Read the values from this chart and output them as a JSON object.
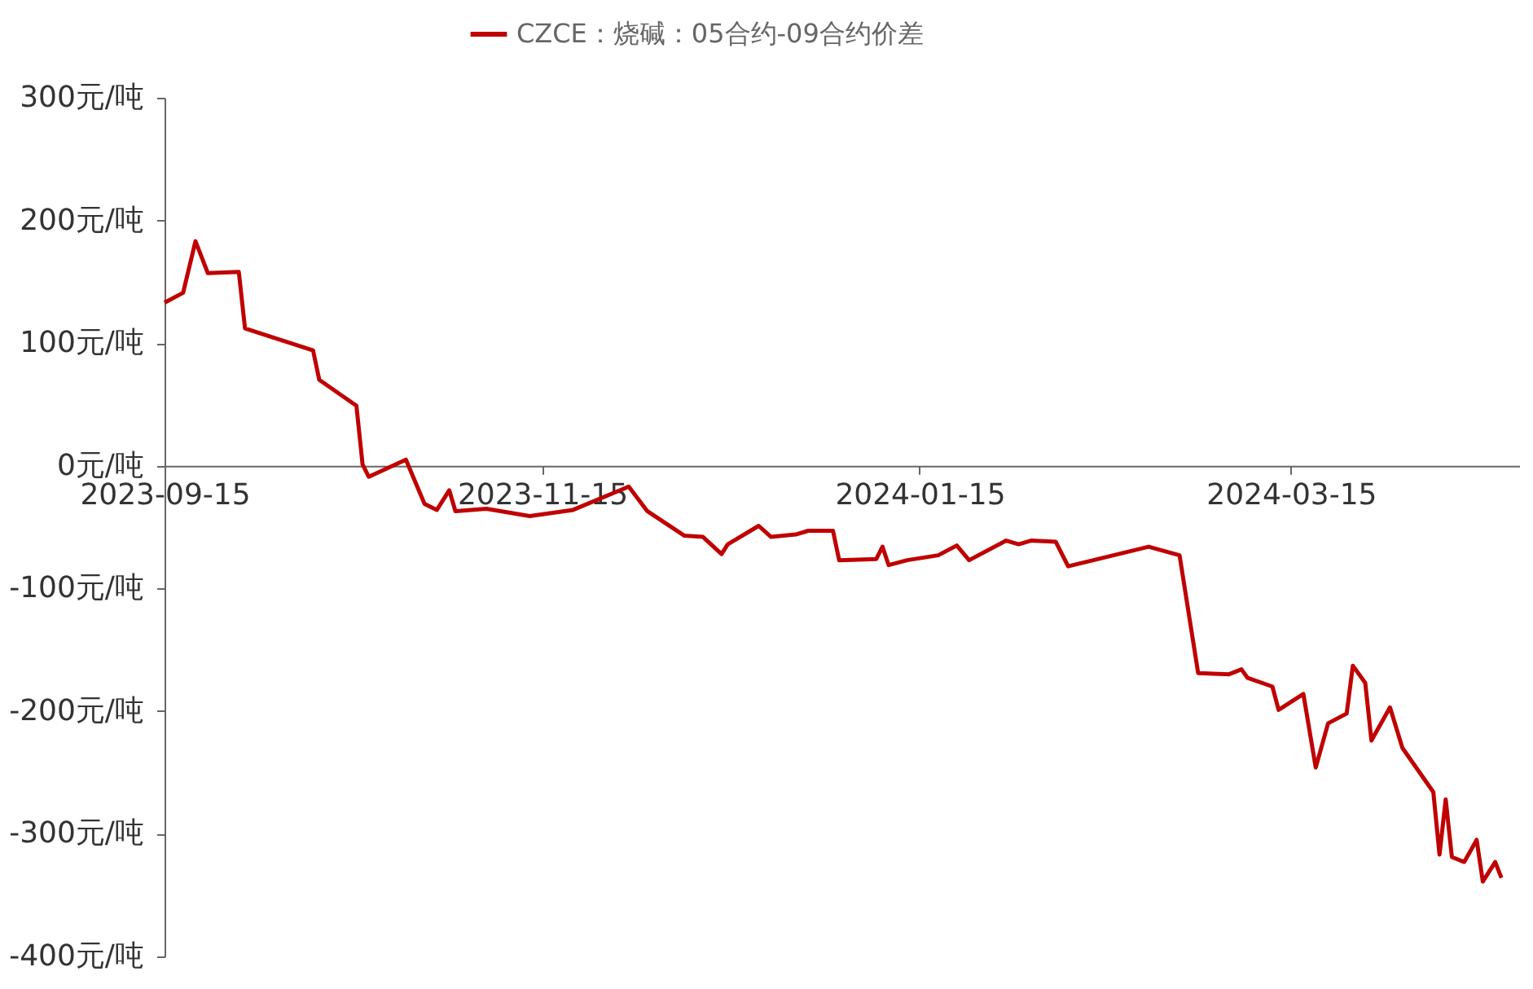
{
  "chart_data": {
    "type": "line",
    "legend": "top",
    "xlim": [
      "2023-09-15",
      "2024-04-21"
    ],
    "xticks": [
      {
        "value": "2023-09-15",
        "label": "2023-09-15"
      },
      {
        "value": "2023-11-15",
        "label": "2023-11-15"
      },
      {
        "value": "2024-01-15",
        "label": "2024-01-15"
      },
      {
        "value": "2024-03-15",
        "label": "2024-03-15"
      }
    ],
    "ylim": [
      -400,
      300
    ],
    "yticks": [
      {
        "value": 300,
        "label": "300元/吨"
      },
      {
        "value": 200,
        "label": "200元/吨"
      },
      {
        "value": 100,
        "label": "100元/吨"
      },
      {
        "value": 0,
        "label": "0元/吨"
      },
      {
        "value": -100,
        "label": "-100元/吨"
      },
      {
        "value": -200,
        "label": "-200元/吨"
      },
      {
        "value": -300,
        "label": "-300元/吨"
      },
      {
        "value": -400,
        "label": "-400元/吨"
      }
    ],
    "x": [
      "2023-09-15",
      "2023-09-18",
      "2023-09-20",
      "2023-09-22",
      "2023-09-27",
      "2023-09-28",
      "2023-10-09",
      "2023-10-10",
      "2023-10-16",
      "2023-10-17",
      "2023-10-18",
      "2023-10-24",
      "2023-10-27",
      "2023-10-29",
      "2023-10-31",
      "2023-11-01",
      "2023-11-06",
      "2023-11-13",
      "2023-11-20",
      "2023-11-29",
      "2023-12-02",
      "2023-12-08",
      "2023-12-11",
      "2023-12-14",
      "2023-12-15",
      "2023-12-20",
      "2023-12-22",
      "2023-12-26",
      "2023-12-28",
      "2024-01-01",
      "2024-01-02",
      "2024-01-08",
      "2024-01-09",
      "2024-01-10",
      "2024-01-13",
      "2024-01-18",
      "2024-01-21",
      "2024-01-23",
      "2024-01-29",
      "2024-01-31",
      "2024-02-02",
      "2024-02-06",
      "2024-02-08",
      "2024-02-21",
      "2024-02-26",
      "2024-02-29",
      "2024-03-05",
      "2024-03-07",
      "2024-03-08",
      "2024-03-12",
      "2024-03-13",
      "2024-03-17",
      "2024-03-19",
      "2024-03-21",
      "2024-03-24",
      "2024-03-25",
      "2024-03-27",
      "2024-03-28",
      "2024-03-31",
      "2024-04-02",
      "2024-04-07",
      "2024-04-08",
      "2024-04-09",
      "2024-04-10",
      "2024-04-12",
      "2024-04-14",
      "2024-04-15",
      "2024-04-17",
      "2024-04-18"
    ],
    "series": [
      {
        "name": "CZCE：烧碱：05合约-09合约价差",
        "color": "#c00000",
        "values": [
          133,
          141,
          183,
          157,
          158,
          112,
          94,
          70,
          49,
          1,
          -9,
          5,
          -31,
          -36,
          -20,
          -37,
          -35,
          -41,
          -36,
          -17,
          -37,
          -57,
          -58,
          -72,
          -64,
          -49,
          -58,
          -56,
          -53,
          -53,
          -77,
          -76,
          -66,
          -81,
          -77,
          -73,
          -65,
          -77,
          -61,
          -64,
          -61,
          -62,
          -82,
          -66,
          -73,
          -169,
          -170,
          -166,
          -173,
          -180,
          -199,
          -186,
          -246,
          -210,
          -202,
          -163,
          -177,
          -224,
          -197,
          -230,
          -266,
          -317,
          -272,
          -319,
          -323,
          -305,
          -339,
          -323,
          -336
        ]
      }
    ]
  }
}
